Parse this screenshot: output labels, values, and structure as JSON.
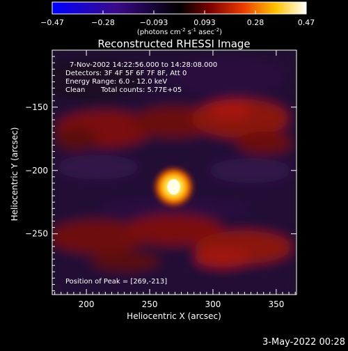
{
  "chart_data": {
    "type": "heatmap",
    "title": "Reconstructed RHESSI Image",
    "xlabel": "Heliocentric X (arcsec)",
    "ylabel": "Heliocentric Y (arcsec)",
    "xlim": [
      173,
      366
    ],
    "ylim": [
      -298,
      -105
    ],
    "xticks": [
      200,
      250,
      300,
      350
    ],
    "yticks": [
      -250,
      -200,
      -150
    ],
    "colorbar": {
      "range": [
        -0.47,
        0.47
      ],
      "ticks": [
        "-0.47",
        "-0.28",
        "-0.093",
        "0.093",
        "0.28",
        "0.47"
      ],
      "unit_prefix": "(photons cm",
      "unit_sup1": "-2",
      "unit_mid1": " s",
      "unit_sup2": "-1",
      "unit_mid2": " asec",
      "unit_sup3": "-2",
      "unit_suffix": ")",
      "colormap": "blue-black-red-yellow-white"
    },
    "peak": {
      "x": 269,
      "y": -213,
      "value": 0.47
    },
    "annotations": {
      "time": "7-Nov-2002 14:22:56.000 to 14:28:08.000",
      "detectors": "Detectors: 3F 4F 5F 6F 7F 8F, Att 0",
      "energy": "Energy Range: 6.0 - 12.0 keV",
      "clean_label": "Clean",
      "counts": "Total counts: 5.77E+05",
      "peak_position": "Position of Peak = [269,-213]"
    },
    "grid": false
  },
  "footer": {
    "date": "3-May-2022 00:28"
  }
}
